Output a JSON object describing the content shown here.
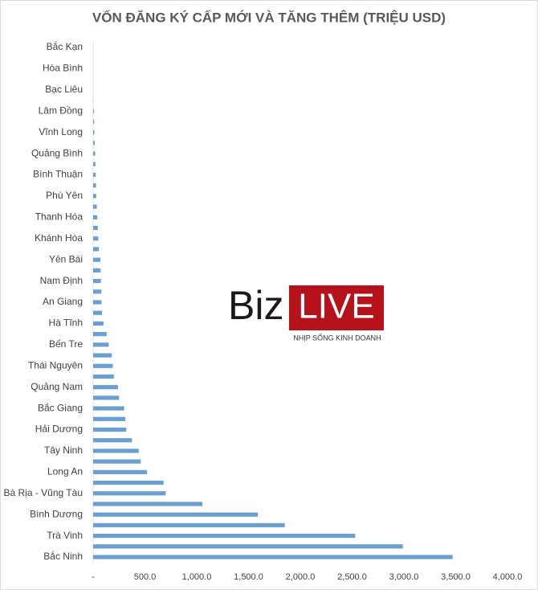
{
  "chart_data": {
    "type": "barh",
    "title": "VỐN ĐĂNG KÝ CẤP MỚI VÀ TĂNG THÊM (TRIỆU USD)",
    "categories": [
      "Bắc Kạn",
      null,
      "Hòa Bình",
      null,
      "Bạc Liêu",
      null,
      "Lâm Đồng",
      null,
      "Vĩnh Long",
      null,
      "Quảng Bình",
      null,
      "Bình Thuận",
      null,
      "Phú Yên",
      null,
      "Thanh Hóa",
      null,
      "Khánh Hòa",
      null,
      "Yên Bái",
      null,
      "Nam Định",
      null,
      "An Giang",
      null,
      "Hà Tĩnh",
      null,
      "Bến Tre",
      null,
      "Thái Nguyên",
      null,
      "Quảng Nam",
      null,
      "Bắc Giang",
      null,
      "Hải Dương",
      null,
      "Tây Ninh",
      null,
      "Long An",
      null,
      "Bà Rịa - Vũng Tàu",
      null,
      "Bình Dương",
      null,
      "Trà Vinh",
      null,
      "Bắc Ninh"
    ],
    "values": [
      0,
      0,
      0,
      0.5,
      1,
      2,
      8,
      10,
      12,
      15,
      20,
      22,
      25,
      28,
      30,
      35,
      40,
      45,
      50,
      55,
      70,
      72,
      75,
      80,
      80,
      85,
      100,
      130,
      150,
      180,
      190,
      200,
      240,
      250,
      300,
      310,
      320,
      375,
      440,
      460,
      520,
      680,
      700,
      1055,
      1590,
      1850,
      2530,
      2990,
      3470
    ],
    "color": "#6a9fd0",
    "xlim": [
      0,
      4000
    ],
    "xticks": [
      {
        "value": 0,
        "label": "-"
      },
      {
        "value": 500,
        "label": "500.0"
      },
      {
        "value": 1000,
        "label": "1,000.0"
      },
      {
        "value": 1500,
        "label": "1,500.0"
      },
      {
        "value": 2000,
        "label": "2,000.0"
      },
      {
        "value": 2500,
        "label": "2,500.0"
      },
      {
        "value": 3000,
        "label": "3,000.0"
      },
      {
        "value": 3500,
        "label": "3,500.0"
      },
      {
        "value": 4000,
        "label": "4,000.0"
      }
    ],
    "grid": false
  },
  "watermark": {
    "brand_left": "Biz",
    "brand_right": "LIVE",
    "tagline": "NHỊP SỐNG KINH DOANH"
  }
}
